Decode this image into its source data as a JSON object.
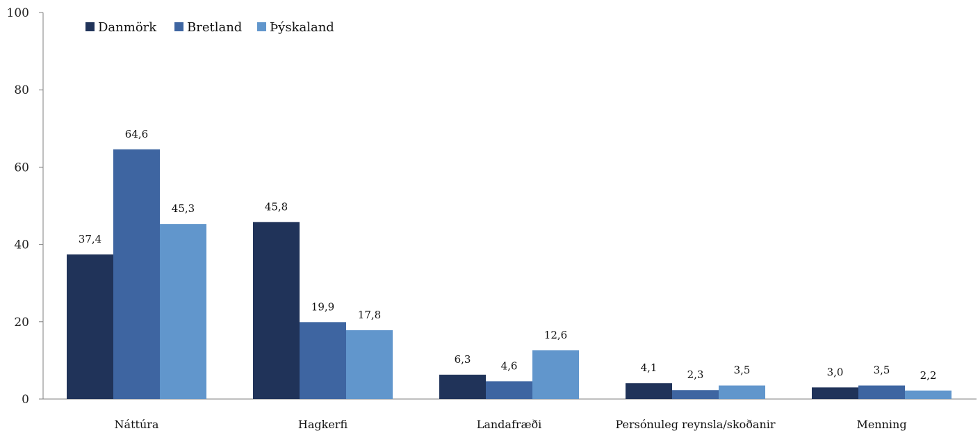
{
  "chart_data": {
    "type": "bar",
    "categories": [
      "Náttúra",
      "Hagkerfi",
      "Landafræði",
      "Persónuleg reynsla/skoðanir",
      "Menning"
    ],
    "series": [
      {
        "name": "Danmörk",
        "color": "#203359",
        "values": [
          37.4,
          45.8,
          6.3,
          4.1,
          3.0
        ],
        "labels": [
          "37,4",
          "45,8",
          "6,3",
          "4,1",
          "3,0"
        ]
      },
      {
        "name": "Bretland",
        "color": "#3e65a1",
        "values": [
          64.6,
          19.9,
          4.6,
          2.3,
          3.5
        ],
        "labels": [
          "64,6",
          "19,9",
          "4,6",
          "2,3",
          "3,5"
        ]
      },
      {
        "name": "Þýskaland",
        "color": "#6196cc",
        "values": [
          45.3,
          17.8,
          12.6,
          3.5,
          2.2
        ],
        "labels": [
          "45,3",
          "17,8",
          "12,6",
          "3,5",
          "2,2"
        ]
      }
    ],
    "yticks": [
      0,
      20,
      40,
      60,
      80,
      100
    ],
    "ylim": [
      0,
      100
    ],
    "grid": false,
    "legend_position": "top-left"
  }
}
